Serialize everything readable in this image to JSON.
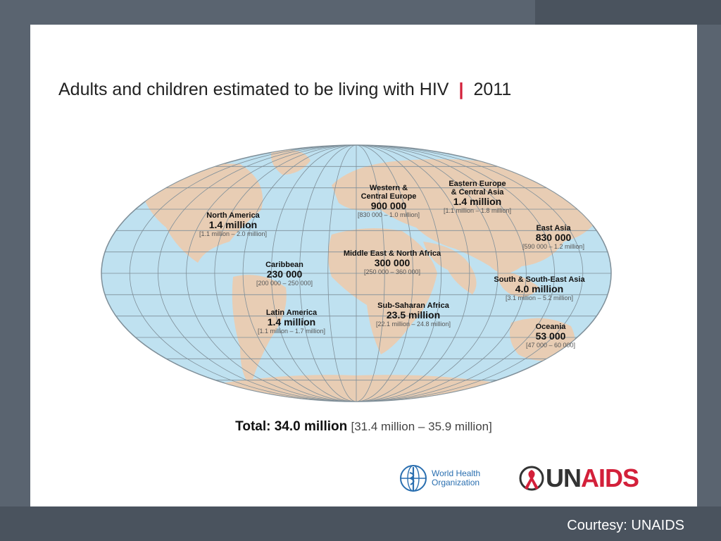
{
  "title": {
    "main": "Adults and children estimated to be living with HIV",
    "separator": "|",
    "year": "2011"
  },
  "regions": [
    {
      "id": "north-america",
      "name": [
        "North America"
      ],
      "value": "1.4 million",
      "range": "[1.1 million – 2.0 million]"
    },
    {
      "id": "caribbean",
      "name": [
        "Caribbean"
      ],
      "value": "230 000",
      "range": "[200 000 – 250 000]"
    },
    {
      "id": "latin-america",
      "name": [
        "Latin America"
      ],
      "value": "1.4 million",
      "range": "[1.1 million – 1.7 million]"
    },
    {
      "id": "western-central-europe",
      "name": [
        "Western &",
        "Central Europe"
      ],
      "value": "900 000",
      "range": "[830 000 – 1.0 million]"
    },
    {
      "id": "eastern-europe-central-asia",
      "name": [
        "Eastern Europe",
        "& Central Asia"
      ],
      "value": "1.4 million",
      "range": "[1.1 million – 1.8 million]"
    },
    {
      "id": "middle-east-north-africa",
      "name": [
        "Middle East & North Africa"
      ],
      "value": "300 000",
      "range": "[250 000 – 360 000]"
    },
    {
      "id": "sub-saharan-africa",
      "name": [
        "Sub-Saharan Africa"
      ],
      "value": "23.5 million",
      "range": "[22.1 million – 24.8 million]"
    },
    {
      "id": "east-asia",
      "name": [
        "East Asia"
      ],
      "value": "830 000",
      "range": "[590 000 – 1.2 million]"
    },
    {
      "id": "south-southeast-asia",
      "name": [
        "South & South-East Asia"
      ],
      "value": "4.0 million",
      "range": "[3.1 million – 5.2 million]"
    },
    {
      "id": "oceania",
      "name": [
        "Oceania"
      ],
      "value": "53 000",
      "range": "[47 000 – 60 000]"
    }
  ],
  "total": {
    "label": "Total: 34.0 million",
    "range": "[31.4 million – 35.9 million]"
  },
  "logos": {
    "who_line1": "World Health",
    "who_line2": "Organization",
    "unaids_un": "UN",
    "unaids_aids": "AIDS"
  },
  "courtesy": "Courtesy: UNAIDS",
  "colors": {
    "ocean": "#bfe1f0",
    "land": "#e8cdb4",
    "grid": "#7f8f99",
    "accent": "#d3203a",
    "background": "#5a6470"
  }
}
